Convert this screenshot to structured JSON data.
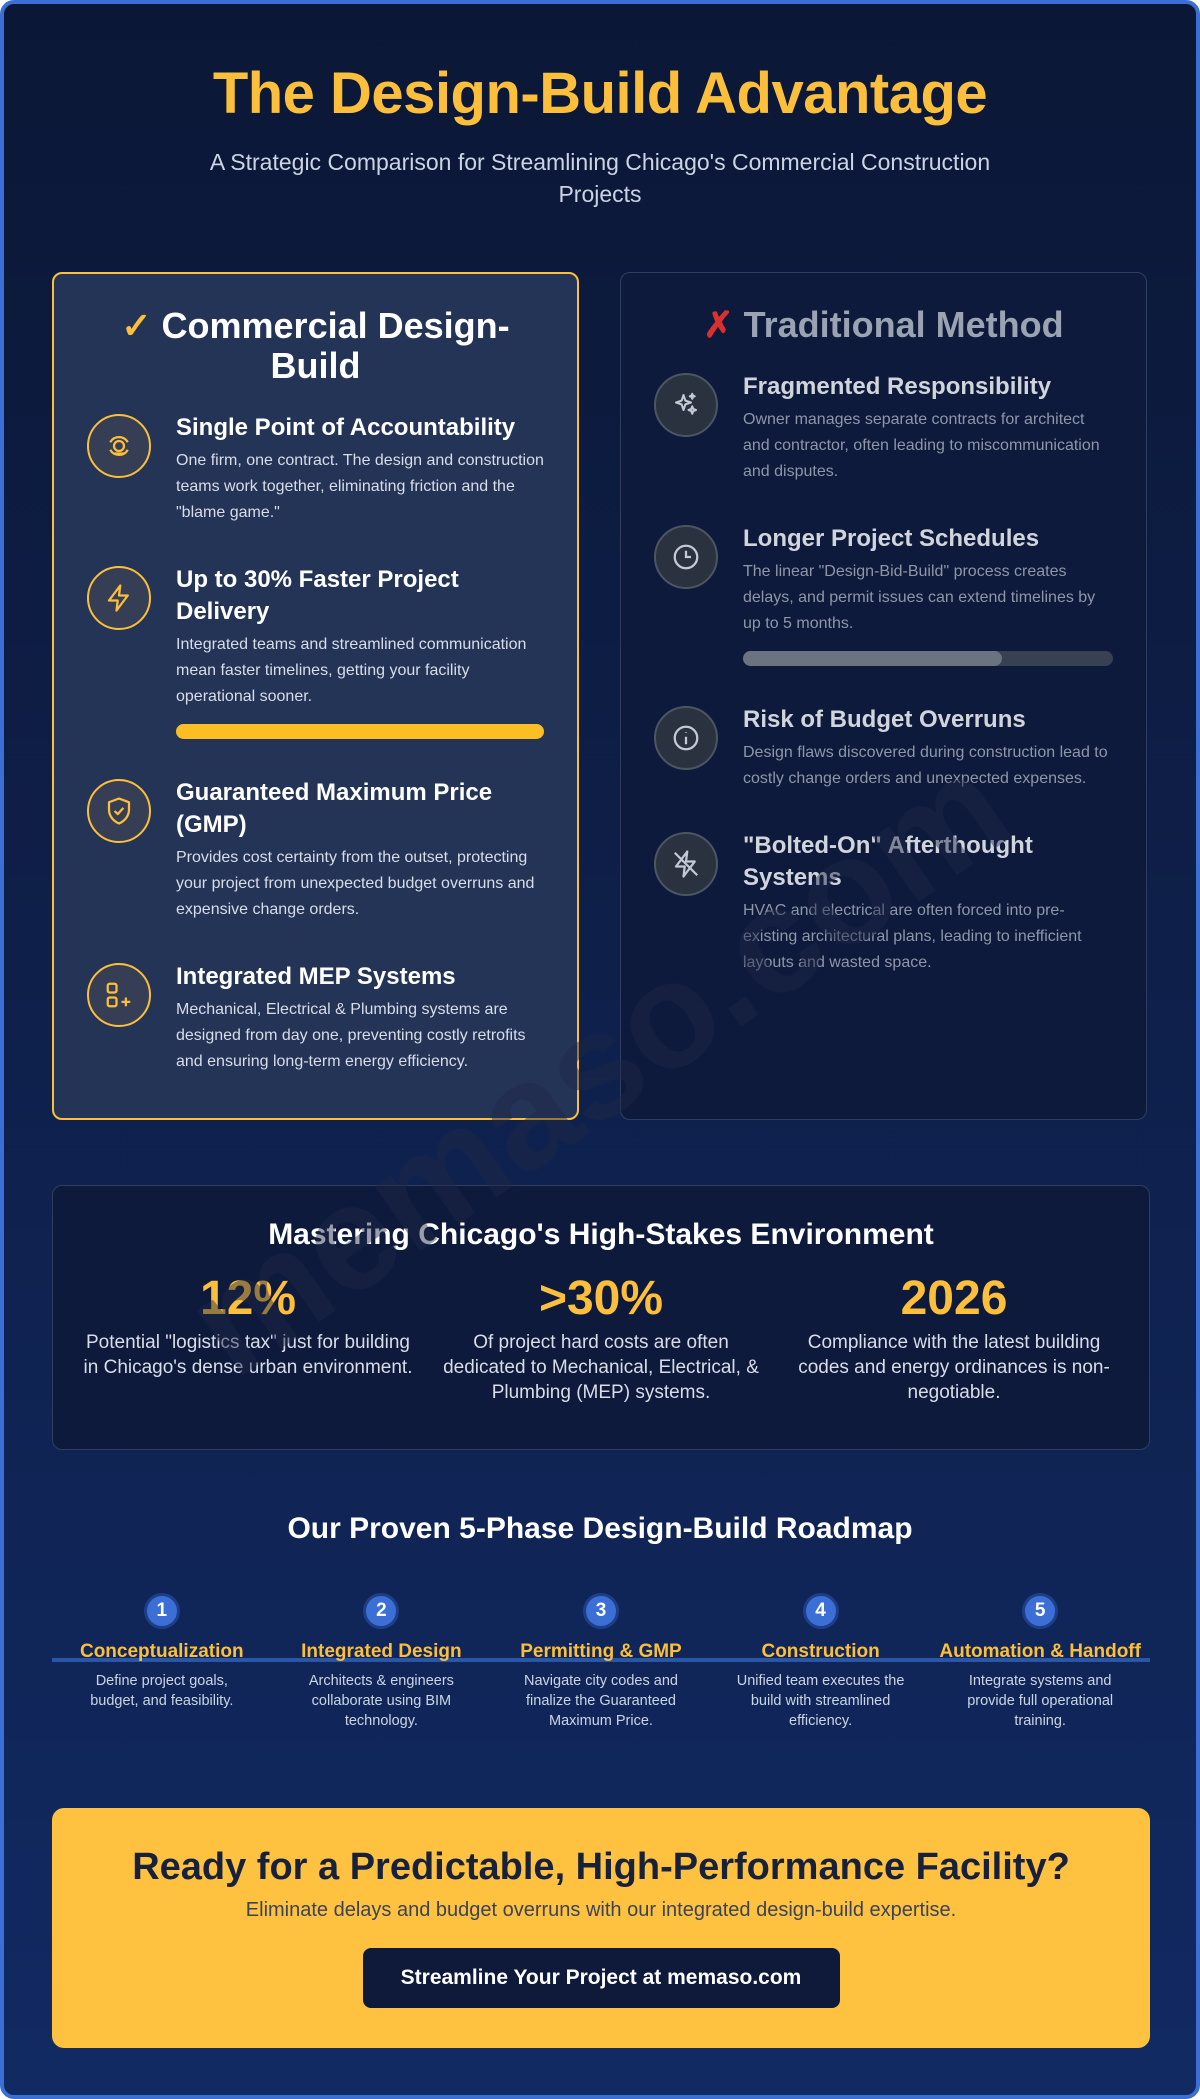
{
  "header": {
    "title": "The Design-Build Advantage",
    "subtitle": "A Strategic Comparison for Streamlining Chicago's Commercial Construction Projects"
  },
  "comparison": {
    "design_build": {
      "mark": "✓",
      "title": "Commercial Design-Build",
      "items": [
        {
          "title": "Single Point of Accountability",
          "text": "One firm, one contract. The design and construction teams work together, eliminating friction and the \"blame game.\""
        },
        {
          "title": "Up to 30% Faster Project Delivery",
          "text": "Integrated teams and streamlined communication mean faster timelines, getting your facility operational sooner."
        },
        {
          "title": "Guaranteed Maximum Price (GMP)",
          "text": "Provides cost certainty from the outset, protecting your project from unexpected budget overruns and expensive change orders."
        },
        {
          "title": "Integrated MEP Systems",
          "text": "Mechanical, Electrical & Plumbing systems are designed from day one, preventing costly retrofits and ensuring long-term energy efficiency."
        }
      ]
    },
    "traditional": {
      "mark": "✗",
      "title": "Traditional Method",
      "items": [
        {
          "title": "Fragmented Responsibility",
          "text": "Owner manages separate contracts for architect and contractor, often leading to miscommunication and disputes."
        },
        {
          "title": "Longer Project Schedules",
          "text": "The linear \"Design-Bid-Build\" process creates delays, and permit issues can extend timelines by up to 5 months."
        },
        {
          "title": "Risk of Budget Overruns",
          "text": "Design flaws discovered during construction lead to costly change orders and unexpected expenses."
        },
        {
          "title": "\"Bolted-On\" Afterthought Systems",
          "text": "HVAC and electrical are often forced into pre-existing architectural plans, leading to inefficient layouts and wasted space."
        }
      ]
    }
  },
  "stats": {
    "title": "Mastering Chicago's High-Stakes Environment",
    "items": [
      {
        "value": "12%",
        "text": "Potential \"logistics tax\" just for building in Chicago's dense urban environment."
      },
      {
        "value": ">30%",
        "text": "Of project hard costs are often dedicated to Mechanical, Electrical, & Plumbing (MEP) systems."
      },
      {
        "value": "2026",
        "text": "Compliance with the latest building codes and energy ordinances is non-negotiable."
      }
    ]
  },
  "roadmap": {
    "title": "Our Proven 5-Phase Design-Build Roadmap",
    "phases": [
      {
        "number": 1,
        "title": "Conceptualization",
        "text": "Define project goals, budget, and feasibility."
      },
      {
        "number": 2,
        "title": "Integrated Design",
        "text": "Architects & engineers collaborate using BIM technology."
      },
      {
        "number": 3,
        "title": "Permitting & GMP",
        "text": "Navigate city codes and finalize the Guaranteed Maximum Price."
      },
      {
        "number": 4,
        "title": "Construction",
        "text": "Unified team executes the build with streamlined efficiency."
      },
      {
        "number": 5,
        "title": "Automation & Handoff",
        "text": "Integrate systems and provide full operational training."
      }
    ]
  },
  "cta": {
    "title": "Ready for a Predictable, High-Performance Facility?",
    "text": "Eliminate delays and budget overruns with our integrated design-build expertise.",
    "button": "Streamline Your Project at memaso.com"
  },
  "watermark": "memaso.com"
}
